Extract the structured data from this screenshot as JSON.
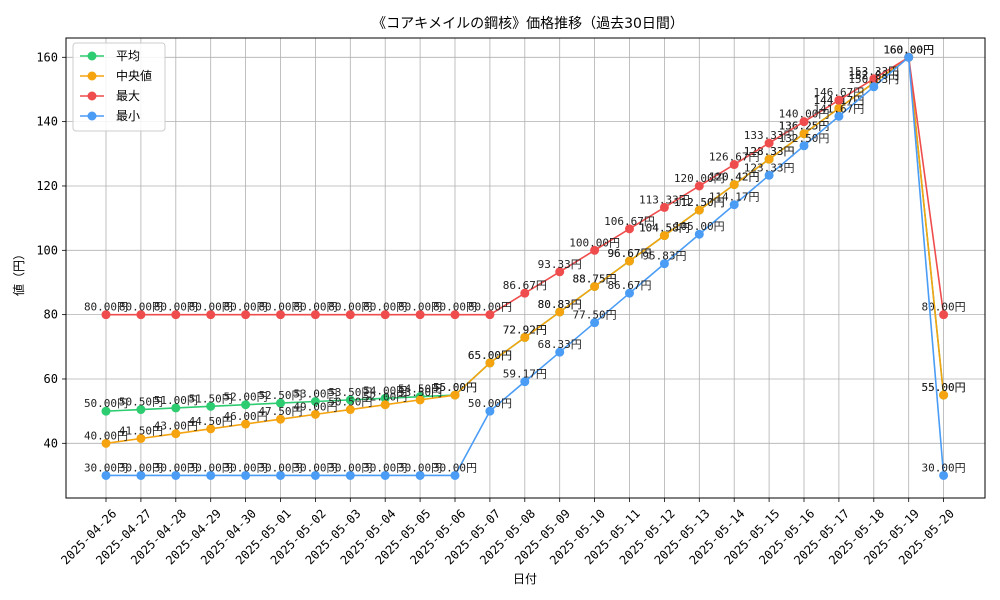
{
  "chart_data": {
    "type": "line",
    "title": "《コアキメイルの鋼核》価格推移（過去30日間）",
    "xlabel": "日付",
    "ylabel": "値（円）",
    "ylim": [
      23,
      166
    ],
    "yticks": [
      40,
      60,
      80,
      100,
      120,
      140,
      160
    ],
    "grid": true,
    "legend_position": "top-left",
    "value_suffix": "円",
    "categories": [
      "2025-04-26",
      "2025-04-27",
      "2025-04-28",
      "2025-04-29",
      "2025-04-30",
      "2025-05-01",
      "2025-05-02",
      "2025-05-03",
      "2025-05-04",
      "2025-05-05",
      "2025-05-06",
      "2025-05-07",
      "2025-05-08",
      "2025-05-09",
      "2025-05-10",
      "2025-05-11",
      "2025-05-12",
      "2025-05-13",
      "2025-05-14",
      "2025-05-15",
      "2025-05-16",
      "2025-05-17",
      "2025-05-18",
      "2025-05-19",
      "2025-05-20"
    ],
    "series": [
      {
        "name": "平均",
        "color": "#2ecc71",
        "values": [
          50.0,
          50.5,
          51.0,
          51.5,
          52.0,
          52.5,
          53.0,
          53.5,
          54.0,
          54.5,
          55.0,
          65.0,
          72.92,
          80.83,
          88.75,
          96.67,
          104.58,
          112.5,
          120.42,
          128.33,
          136.25,
          144.17,
          152.08,
          160.0,
          55.0
        ]
      },
      {
        "name": "中央値",
        "color": "#f5a30f",
        "values": [
          40.0,
          41.5,
          43.0,
          44.5,
          46.0,
          47.5,
          49.0,
          50.5,
          52.0,
          53.5,
          55.0,
          65.0,
          72.92,
          80.83,
          88.75,
          96.67,
          104.58,
          112.5,
          120.42,
          128.33,
          136.25,
          144.17,
          152.08,
          160.0,
          55.0
        ]
      },
      {
        "name": "最大",
        "color": "#ef4d4d",
        "values": [
          80.0,
          80.0,
          80.0,
          80.0,
          80.0,
          80.0,
          80.0,
          80.0,
          80.0,
          80.0,
          80.0,
          80.0,
          86.67,
          93.33,
          100.0,
          106.67,
          113.33,
          120.0,
          126.67,
          133.33,
          140.0,
          146.67,
          153.33,
          160.0,
          80.0
        ]
      },
      {
        "name": "最小",
        "color": "#4a9cf5",
        "values": [
          30.0,
          30.0,
          30.0,
          30.0,
          30.0,
          30.0,
          30.0,
          30.0,
          30.0,
          30.0,
          30.0,
          50.0,
          59.17,
          68.33,
          77.5,
          86.67,
          95.83,
          105.0,
          114.17,
          123.33,
          132.5,
          141.67,
          150.83,
          160.0,
          30.0
        ]
      }
    ]
  }
}
